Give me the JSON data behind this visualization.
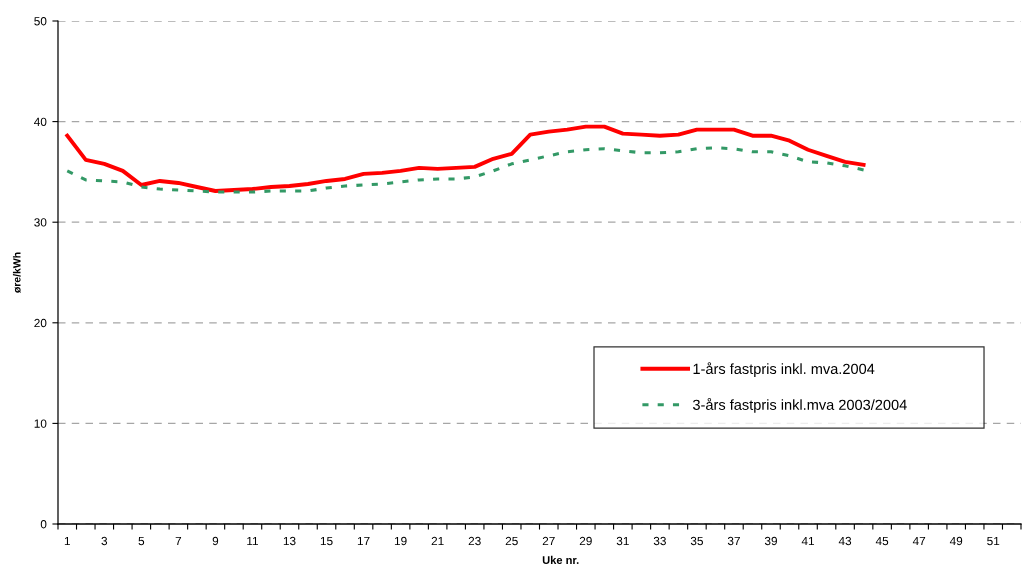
{
  "chart_data": {
    "type": "line",
    "xlabel": "Uke nr.",
    "ylabel": "øre/kWh",
    "categories": [
      "1",
      null,
      "3",
      null,
      "5",
      null,
      "7",
      null,
      "9",
      null,
      "11",
      null,
      "13",
      null,
      "15",
      null,
      "17",
      null,
      "19",
      null,
      "21",
      null,
      "23",
      null,
      "25",
      null,
      "27",
      null,
      "29",
      null,
      "31",
      null,
      "33",
      null,
      "35",
      null,
      "37",
      null,
      "39",
      null,
      "41",
      null,
      "43",
      null,
      "45",
      null,
      "47",
      null,
      "49",
      null,
      "51",
      null
    ],
    "series": [
      {
        "name": "1-års fastpris inkl. mva.2004",
        "color": "#ff0000",
        "line_style": "solid",
        "values": [
          38.6,
          36.2,
          35.8,
          35.1,
          33.7,
          34.1,
          33.9,
          33.5,
          33.1,
          33.2,
          33.3,
          33.5,
          33.6,
          33.8,
          34.1,
          34.3,
          34.8,
          34.9,
          35.1,
          35.4,
          35.3,
          35.4,
          35.5,
          36.3,
          36.8,
          38.7,
          39.0,
          39.2,
          39.5,
          39.5,
          38.8,
          38.7,
          38.6,
          38.7,
          39.2,
          39.2,
          39.2,
          38.6,
          38.6,
          38.1,
          37.2,
          36.6,
          36.0,
          35.7,
          null,
          null,
          null,
          null,
          null,
          null,
          null,
          null
        ]
      },
      {
        "name": "3-års fastpris inkl.mva 2003/2004",
        "color": "#339966",
        "line_style": "dashed",
        "values": [
          35.1,
          34.2,
          34.1,
          34.0,
          33.5,
          33.3,
          33.2,
          33.1,
          33.0,
          33.0,
          33.0,
          33.1,
          33.1,
          33.1,
          33.4,
          33.6,
          33.7,
          33.8,
          34.0,
          34.2,
          34.3,
          34.3,
          34.5,
          35.1,
          35.8,
          36.2,
          36.6,
          37.0,
          37.2,
          37.3,
          37.1,
          36.9,
          36.9,
          37.0,
          37.3,
          37.4,
          37.3,
          37.0,
          37.0,
          36.6,
          36.0,
          35.9,
          35.6,
          35.2,
          null,
          null,
          null,
          null,
          null,
          null,
          null,
          null
        ]
      }
    ],
    "ylim": [
      0,
      50
    ],
    "yticks": [
      0,
      10,
      20,
      30,
      40,
      50
    ],
    "grid": "y",
    "legend": "right",
    "marker": "none"
  }
}
